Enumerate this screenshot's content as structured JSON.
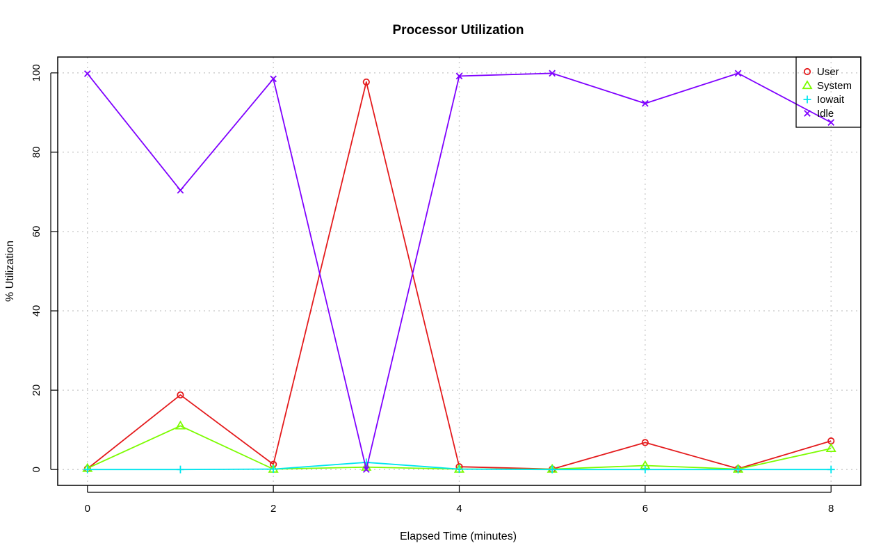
{
  "chart_data": {
    "type": "line",
    "title": "Processor Utilization",
    "xlabel": "Elapsed Time (minutes)",
    "ylabel": "% Utilization",
    "x": [
      0,
      1,
      2,
      3,
      4,
      5,
      6,
      7,
      8
    ],
    "xlim": [
      -0.32,
      8.32
    ],
    "ylim": [
      -4,
      104
    ],
    "xticks": [
      "0",
      "2",
      "4",
      "6",
      "8"
    ],
    "yticks": [
      "0",
      "20",
      "40",
      "60",
      "80",
      "100"
    ],
    "grid": true,
    "legend_position": "top-right",
    "series": [
      {
        "name": "User",
        "color": "#e41a1c",
        "marker": "circle",
        "values": [
          0.2,
          18.8,
          1.3,
          97.7,
          0.7,
          0.1,
          6.8,
          0.2,
          7.2
        ]
      },
      {
        "name": "System",
        "color": "#7cfc00",
        "marker": "triangle",
        "values": [
          0.3,
          11.0,
          0.1,
          0.6,
          0.1,
          0.1,
          1.0,
          0.1,
          5.3
        ]
      },
      {
        "name": "Iowait",
        "color": "#00e5ee",
        "marker": "plus",
        "values": [
          0.0,
          0.0,
          0.1,
          1.8,
          0.1,
          0.0,
          0.0,
          0.0,
          0.0
        ]
      },
      {
        "name": "Idle",
        "color": "#7f00ff",
        "marker": "cross",
        "values": [
          99.8,
          70.4,
          98.5,
          0.0,
          99.2,
          99.9,
          92.3,
          99.9,
          87.5
        ]
      }
    ]
  }
}
